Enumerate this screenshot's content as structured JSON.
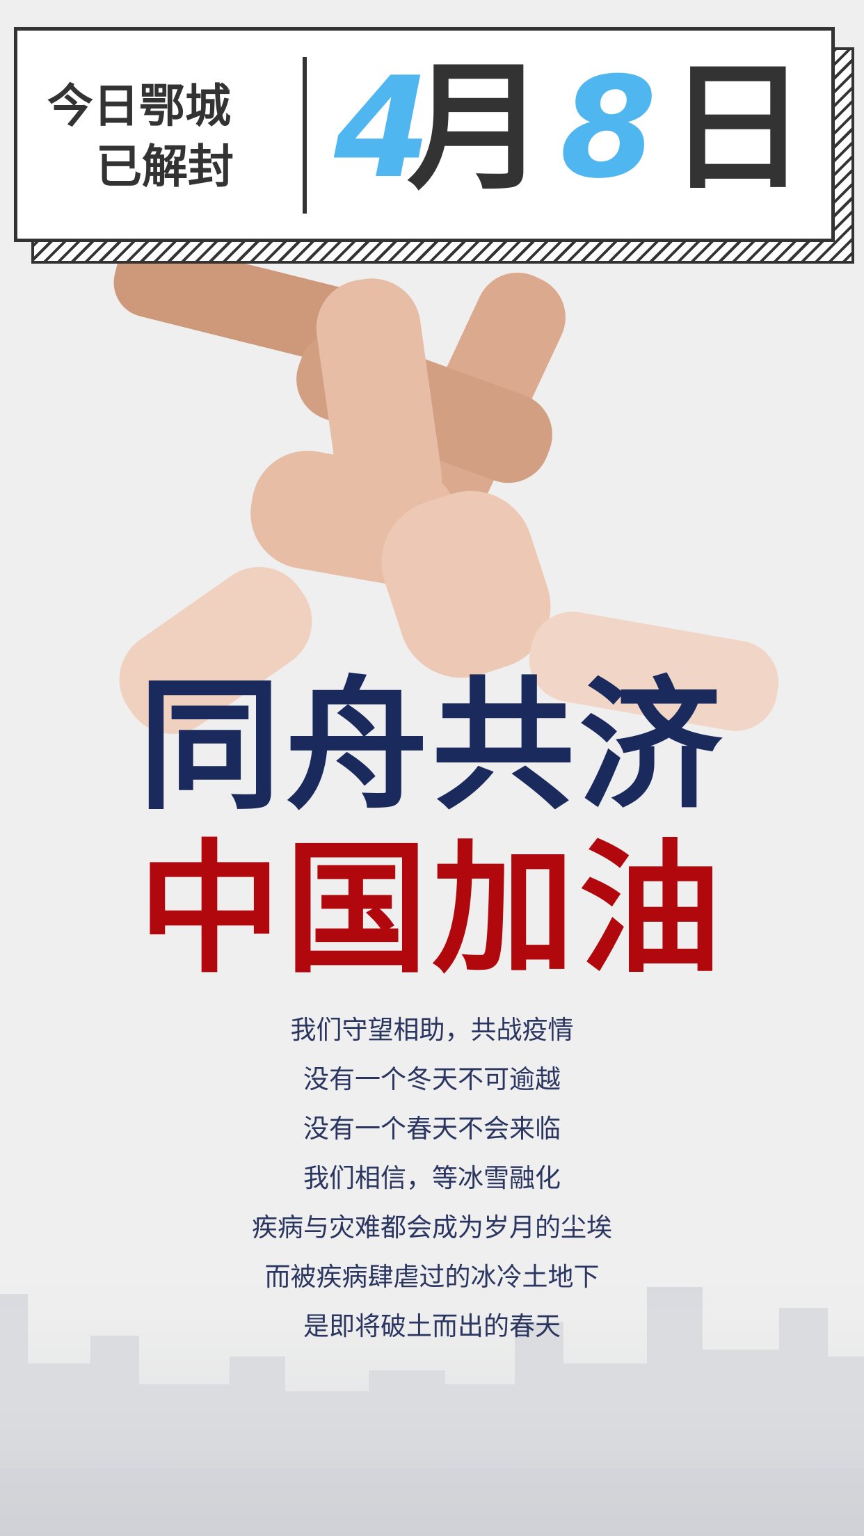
{
  "header": {
    "line1": "今日鄂城",
    "line2": "已解封",
    "month": "4",
    "month_unit": "月",
    "day": "8",
    "day_unit": "日"
  },
  "slogan": {
    "line1": "同舟共济",
    "line2": "中国加油"
  },
  "poem": [
    "我们守望相助，共战疫情",
    "没有一个冬天不可逾越",
    "没有一个春天不会来临",
    "我们相信，等冰雪融化",
    "疾病与灾难都会成为岁月的尘埃",
    "而被疾病肆虐过的冰冷土地下",
    "是即将破土而出的春天"
  ]
}
